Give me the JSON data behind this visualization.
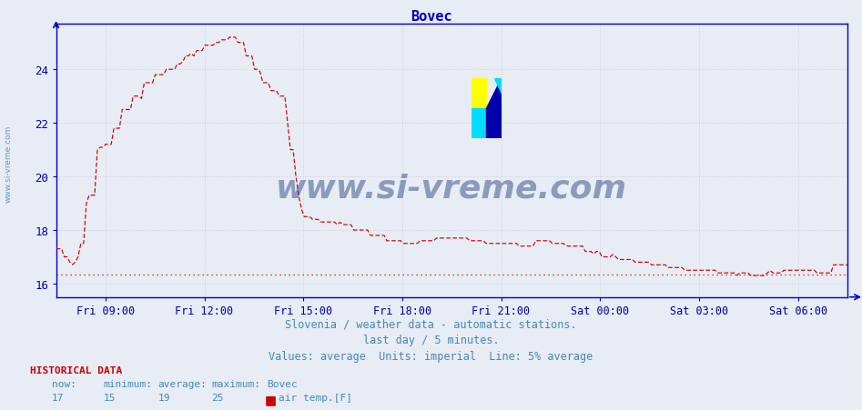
{
  "title": "Bovec",
  "title_color": "#0000cc",
  "background_color": "#e8ecf4",
  "plot_bg_color": "#e8ecf4",
  "grid_color": "#c8c8d8",
  "line_color": "#cc0000",
  "avg_line_color": "#cc0000",
  "ylim": [
    15.5,
    25.7
  ],
  "yticks": [
    16,
    18,
    20,
    22,
    24
  ],
  "tick_color": "#0000aa",
  "avg_value": 16.35,
  "footer_text1": "Slovenia / weather data - automatic stations.",
  "footer_text2": "last day / 5 minutes.",
  "footer_text3": "Values: average  Units: imperial  Line: 5% average",
  "footer_color": "#4488bb",
  "hist_label": "HISTORICAL DATA",
  "hist_color": "#cc0000",
  "now_val": "17",
  "min_val": "15",
  "avg_val": "19",
  "max_val": "25",
  "station": "Bovec",
  "series_label": "air temp.[F]",
  "watermark_text": "www.si-vreme.com",
  "watermark_color": "#1a3a7a",
  "watermark_alpha": 0.45,
  "left_text": "www.si-vreme.com",
  "left_color": "#4488bb",
  "tick_labels": [
    "Fri 09:00",
    "Fri 12:00",
    "Fri 15:00",
    "Fri 18:00",
    "Fri 21:00",
    "Sat 00:00",
    "Sat 03:00",
    "Sat 06:00"
  ],
  "tick_hours": [
    1.5,
    4.5,
    7.5,
    10.5,
    13.5,
    16.5,
    19.5,
    22.5
  ],
  "axes_color": "#0000cc",
  "spine_lw": 1.5
}
